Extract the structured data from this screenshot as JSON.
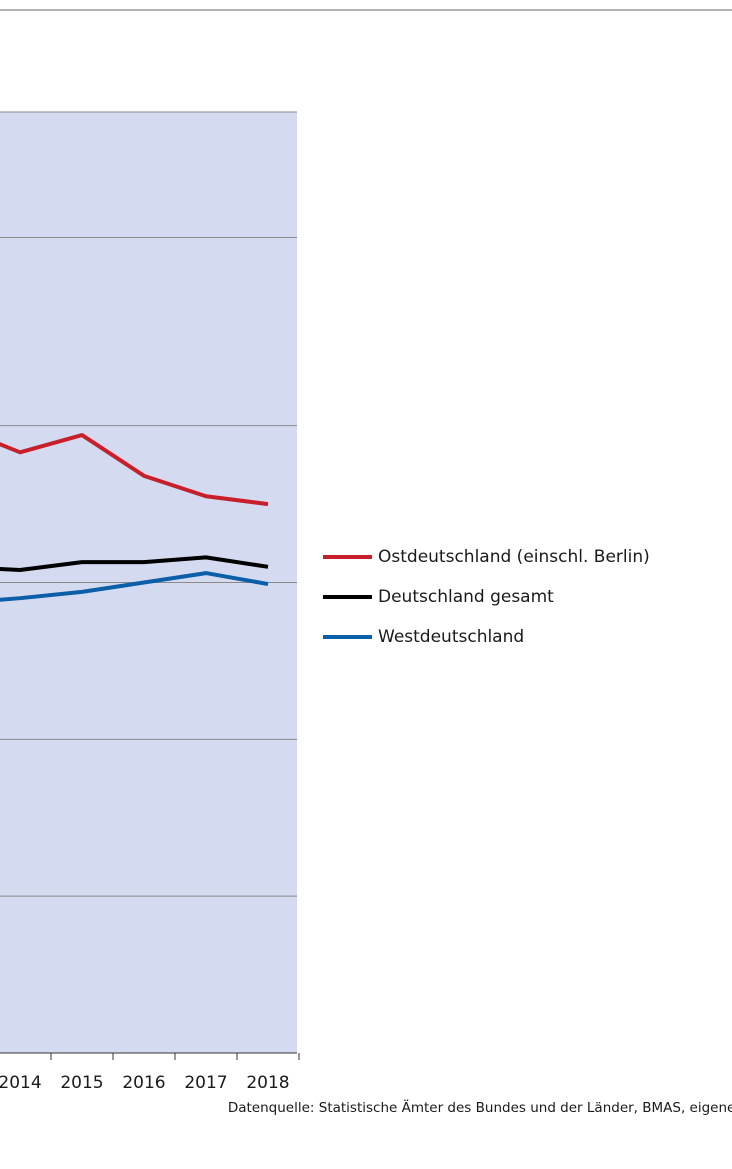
{
  "chart_data": {
    "type": "line",
    "categories": [
      null,
      "2014",
      "2015",
      "2016",
      "2017",
      "2018"
    ],
    "series": [
      {
        "name": "Ostdeutschland (einschl. Berlin)",
        "color": "#c8202a",
        "values": [
          3.99,
          3.83,
          3.94,
          3.68,
          3.55,
          3.5
        ]
      },
      {
        "name": "Deutschland gesamt",
        "color": "#000000",
        "values": [
          3.1,
          3.08,
          3.13,
          3.13,
          3.16,
          3.1
        ]
      },
      {
        "name": "Westdeutschland",
        "color": "#0a5fa8",
        "values": [
          2.87,
          2.9,
          2.94,
          3.0,
          3.06,
          2.99
        ]
      }
    ],
    "ylim": [
      0,
      6
    ],
    "yticks": [
      0,
      1,
      2,
      3,
      4,
      5.2,
      6
    ],
    "grid": true,
    "legend": "right",
    "source": "Datenquelle: Statistische Ämter des Bundes und der Länder, BMAS, eigene Berechnungen."
  }
}
